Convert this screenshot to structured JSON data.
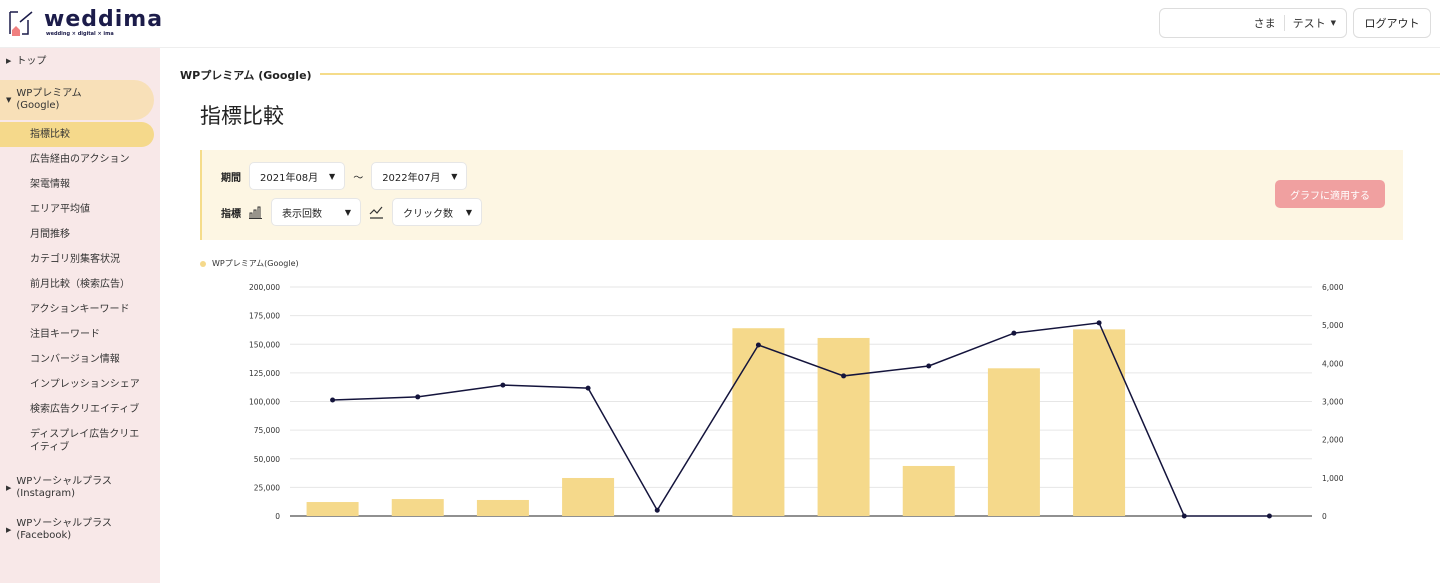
{
  "header": {
    "logo_text": "weddima",
    "logo_tagline": "wedding × digital × ima",
    "user_suffix": "さま",
    "account": "テスト",
    "logout": "ログアウト"
  },
  "sidebar": {
    "top": "トップ",
    "group1": "WPプレミアム\n(Google)",
    "items": [
      "指標比較",
      "広告経由のアクション",
      "架電情報",
      "エリア平均値",
      "月間推移",
      "カテゴリ別集客状況",
      "前月比較（検索広告）",
      "アクションキーワード",
      "注目キーワード",
      "コンバージョン情報",
      "インプレッションシェア",
      "検索広告クリエイティブ",
      "ディスプレイ広告クリエイティブ"
    ],
    "active_index": 0,
    "group2": "WPソーシャルプラス\n(Instagram)",
    "group3": "WPソーシャルプラス\n(Facebook)"
  },
  "breadcrumb": "WPプレミアム (Google)",
  "page_title": "指標比較",
  "filters": {
    "period_label": "期間",
    "from": "2021年08月",
    "tilde": "～",
    "to": "2022年07月",
    "metric_label": "指標",
    "bar_metric": "表示回数",
    "line_metric": "クリック数",
    "apply": "グラフに適用する"
  },
  "colors": {
    "bar": "#f5d98b",
    "line": "#14143c",
    "sidebar_bg": "#f8e8e8",
    "active": "#f5d98b",
    "apply": "#f0a0a0"
  },
  "chart_data": {
    "type": "bar+line",
    "legend": "WPプレミアム(Google)",
    "legend_placement": "top-left",
    "categories": [
      "",
      "",
      "",
      "",
      "",
      "",
      "",
      "",
      "",
      "",
      "",
      ""
    ],
    "bar_series": {
      "metric": "表示回数",
      "axis": "left",
      "values": [
        12200,
        14800,
        14000,
        33200,
        0,
        164000,
        155500,
        43700,
        129000,
        163000,
        0,
        0
      ]
    },
    "line_series": {
      "metric": "クリック数",
      "axis": "right",
      "values": [
        3040,
        3120,
        3430,
        3350,
        150,
        4480,
        3670,
        3930,
        4790,
        5060,
        0,
        0
      ]
    },
    "y_left": {
      "range": [
        0,
        200000
      ],
      "ticks": [
        "0",
        "25,000",
        "50,000",
        "75,000",
        "100,000",
        "125,000",
        "150,000",
        "175,000",
        "200,000"
      ]
    },
    "y_right": {
      "range": [
        0,
        6000
      ],
      "ticks": [
        "0",
        "1,000",
        "2,000",
        "3,000",
        "4,000",
        "5,000",
        "6,000"
      ]
    },
    "grid": true
  }
}
